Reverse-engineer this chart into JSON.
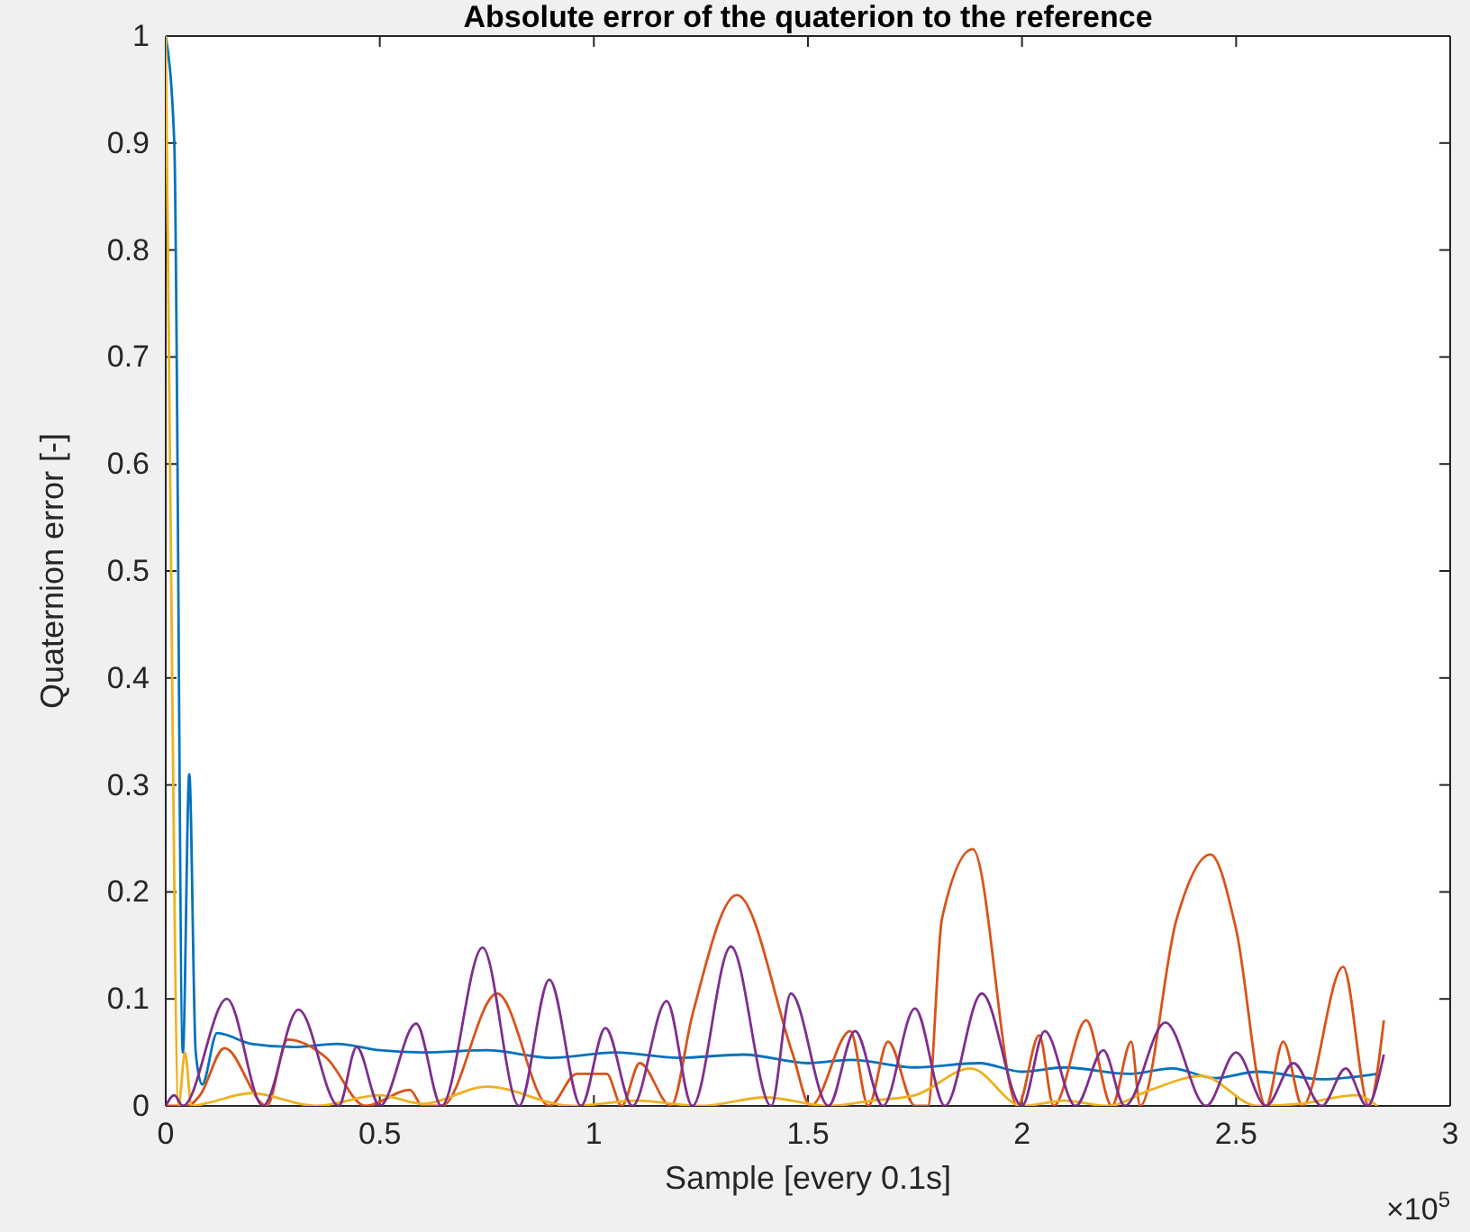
{
  "chart_data": {
    "type": "line",
    "title": "Absolute error of the quaterion to the reference",
    "xlabel": "Sample [every 0.1s]",
    "ylabel": "Quaternion error [-]",
    "annotations": [
      "×10$^{5}$"
    ],
    "xlim": [
      0,
      3
    ],
    "xticks": [
      0,
      0.5,
      1,
      1.5,
      2,
      2.5,
      3
    ],
    "ylim": [
      0,
      1
    ],
    "yticks": [
      0,
      0.1,
      0.2,
      0.3,
      0.4,
      0.5,
      0.6,
      0.7,
      0.8,
      0.9,
      1
    ],
    "grid": false,
    "line_style": "solid",
    "series": [
      {
        "color": "#0072bd",
        "x": [
          0,
          0.02,
          0.04,
          0.055,
          0.07,
          0.085,
          0.12,
          0.2,
          0.3,
          0.4,
          0.5,
          0.6,
          0.75,
          0.9,
          1.05,
          1.2,
          1.35,
          1.5,
          1.6,
          1.75,
          1.9,
          2.0,
          2.1,
          2.25,
          2.35,
          2.45,
          2.55,
          2.7,
          2.83
        ],
        "values": [
          1,
          0.9,
          0.05,
          0.31,
          0.05,
          0.02,
          0.068,
          0.058,
          0.055,
          0.058,
          0.052,
          0.05,
          0.052,
          0.045,
          0.05,
          0.045,
          0.048,
          0.04,
          0.043,
          0.036,
          0.04,
          0.032,
          0.036,
          0.03,
          0.035,
          0.026,
          0.032,
          0.025,
          0.03
        ]
      },
      {
        "color": "#d95319",
        "x": [
          0,
          0.05,
          0.08,
          0.137,
          0.236,
          0.285,
          0.375,
          0.467,
          0.57,
          0.6,
          0.645,
          0.774,
          0.896,
          0.96,
          1.03,
          1.065,
          1.107,
          1.18,
          1.23,
          1.334,
          1.464,
          1.506,
          1.599,
          1.641,
          1.687,
          1.75,
          1.78,
          1.813,
          1.885,
          1.99,
          2.04,
          2.074,
          2.15,
          2.21,
          2.255,
          2.276,
          2.36,
          2.44,
          2.5,
          2.57,
          2.61,
          2.655,
          2.75,
          2.81,
          2.845
        ],
        "values": [
          0,
          0,
          0.01,
          0.054,
          0,
          0.062,
          0.045,
          0,
          0.015,
          0,
          0,
          0.105,
          0,
          0.03,
          0.03,
          0,
          0.04,
          0,
          0.085,
          0.197,
          0.049,
          0,
          0.07,
          0,
          0.06,
          0,
          0,
          0.175,
          0.24,
          0,
          0.066,
          0,
          0.08,
          0,
          0.06,
          0,
          0.173,
          0.235,
          0.165,
          0,
          0.06,
          0,
          0.13,
          0,
          0.08
        ]
      },
      {
        "color": "#edb120",
        "x": [
          0,
          0.01,
          0.03,
          0.045,
          0.06,
          0.1,
          0.2,
          0.35,
          0.5,
          0.6,
          0.75,
          0.95,
          1.1,
          1.25,
          1.4,
          1.55,
          1.65,
          1.75,
          1.88,
          2.0,
          2.1,
          2.2,
          2.3,
          2.42,
          2.55,
          2.65,
          2.78,
          2.83
        ],
        "values": [
          1,
          0.6,
          0,
          0.05,
          0,
          0.003,
          0.012,
          0,
          0.01,
          0.002,
          0.018,
          0,
          0.005,
          0,
          0.008,
          0,
          0.005,
          0.01,
          0.035,
          0,
          0.005,
          0,
          0.015,
          0.028,
          0,
          0.002,
          0.01,
          0
        ]
      },
      {
        "color": "#7e2f8e",
        "x": [
          0,
          0.02,
          0.04,
          0.143,
          0.227,
          0.31,
          0.404,
          0.446,
          0.5,
          0.585,
          0.644,
          0.74,
          0.825,
          0.896,
          0.97,
          1.027,
          1.09,
          1.17,
          1.23,
          1.32,
          1.414,
          1.46,
          1.548,
          1.61,
          1.675,
          1.75,
          1.82,
          1.906,
          2.0,
          2.053,
          2.125,
          2.19,
          2.24,
          2.335,
          2.43,
          2.5,
          2.57,
          2.634,
          2.7,
          2.756,
          2.806,
          2.845
        ],
        "values": [
          0,
          0.01,
          0,
          0.1,
          0,
          0.09,
          0,
          0.055,
          0,
          0.077,
          0,
          0.148,
          0,
          0.118,
          0,
          0.073,
          0,
          0.098,
          0,
          0.149,
          0,
          0.105,
          0,
          0.07,
          0,
          0.091,
          0,
          0.105,
          0,
          0.07,
          0,
          0.052,
          0,
          0.078,
          0,
          0.05,
          0,
          0.04,
          0,
          0.035,
          0,
          0.048
        ]
      }
    ]
  }
}
